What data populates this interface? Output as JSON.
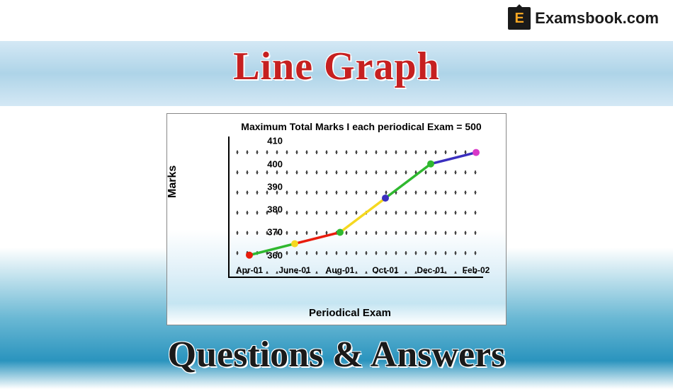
{
  "logo": {
    "letter": "E",
    "text": "Examsbook.com"
  },
  "title": "Line Graph",
  "footer": "Questions & Answers",
  "chart": {
    "type": "line",
    "title": "Maximum Total Marks I each periodical Exam = 500",
    "ylabel": "Marks",
    "xlabel": "Periodical Exam",
    "ylim": [
      350,
      412
    ],
    "ytick_step": 10,
    "yticks": [
      360,
      370,
      380,
      390,
      400,
      410
    ],
    "categories": [
      "Apr-01",
      "June-01",
      "Aug-01",
      "Oct-01",
      "Dec-01",
      "Feb-02"
    ],
    "values": [
      360,
      365,
      370,
      385,
      400,
      405
    ],
    "point_colors": [
      "#e81c0c",
      "#f5d820",
      "#2fb82f",
      "#3a2fbf",
      "#2fb82f",
      "#d838c8"
    ],
    "segment_colors": [
      "#2fb82f",
      "#e81c0c",
      "#f5d820",
      "#2fb82f",
      "#3a2fbf"
    ],
    "marker_radius": 5,
    "line_width": 3.5,
    "axis_color": "#000000",
    "grid_dot_color": "#444444",
    "card_gradient": [
      "#ffffff",
      "#e0f0f8",
      "#c5e5f2"
    ],
    "label_fontsize": 15,
    "tick_fontsize": 13
  },
  "colors": {
    "title_color": "#c62020",
    "footer_color": "#1a1a1a",
    "header_gradient": [
      "#d4e8f5",
      "#aed4e8"
    ],
    "bg_gradient": [
      "#ffffff",
      "#6ab8d4",
      "#2a94be"
    ]
  }
}
